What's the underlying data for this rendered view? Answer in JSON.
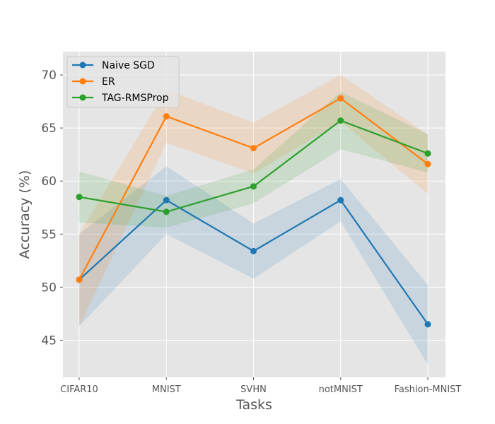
{
  "chart_data": {
    "type": "line",
    "title": "",
    "xlabel": "Tasks",
    "ylabel": "Accuracy (%)",
    "categories": [
      "CIFAR10",
      "MNIST",
      "SVHN",
      "notMNIST",
      "Fashion-MNIST"
    ],
    "ylim": [
      41.5,
      72.2
    ],
    "yticks": [
      45,
      50,
      55,
      60,
      65,
      70
    ],
    "grid": true,
    "legend_position": "top-left",
    "series": [
      {
        "name": "Naive SGD",
        "color": "#1f77b4",
        "values": [
          50.7,
          58.2,
          53.4,
          58.2,
          46.5
        ],
        "lower": [
          46.3,
          55.0,
          50.8,
          56.2,
          42.7
        ],
        "upper": [
          55.0,
          61.4,
          56.0,
          60.2,
          50.2
        ]
      },
      {
        "name": "ER",
        "color": "#ff7f0e",
        "values": [
          50.7,
          66.1,
          63.1,
          67.8,
          61.6
        ],
        "lower": [
          46.3,
          63.6,
          60.7,
          65.6,
          58.8
        ],
        "upper": [
          55.0,
          68.6,
          65.5,
          70.0,
          64.4
        ]
      },
      {
        "name": "TAG-RMSProp",
        "color": "#2ca02c",
        "values": [
          58.5,
          57.1,
          59.5,
          65.7,
          62.6
        ],
        "lower": [
          56.1,
          55.6,
          57.9,
          63.0,
          60.8
        ],
        "upper": [
          60.9,
          58.6,
          61.1,
          68.4,
          64.4
        ]
      }
    ]
  }
}
